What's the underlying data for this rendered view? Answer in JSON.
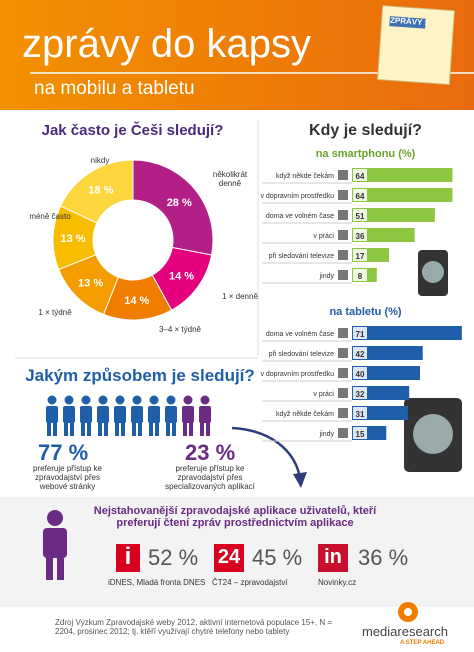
{
  "header": {
    "title": "zprávy do kapsy",
    "subtitle": "na mobilu a tabletu",
    "badge": "ZPRÁVY !"
  },
  "chart_data": [
    {
      "type": "pie",
      "title": "Jak často je Češi sledují?",
      "categories": [
        "několikrát denně",
        "1 × denně",
        "3–4 × týdně",
        "1 × týdně",
        "méně často",
        "nikdy"
      ],
      "values": [
        28,
        14,
        14,
        13,
        13,
        18
      ],
      "value_labels": [
        "28 %",
        "14 %",
        "14 %",
        "13 %",
        "13 %",
        "18 %"
      ],
      "colors": [
        "#b21f86",
        "#e5007d",
        "#f07d00",
        "#f59c00",
        "#f9bd00",
        "#fcd63c"
      ]
    },
    {
      "type": "bar",
      "title": "Kdy je sledují?",
      "subtitle": "na smartphonu (%)",
      "color": "#8dc63f",
      "categories": [
        "když někde čekám",
        "v dopravním prostředku",
        "doma ve volném čase",
        "v práci",
        "při sledování televize",
        "jindy"
      ],
      "values": [
        64,
        64,
        51,
        36,
        17,
        8
      ]
    },
    {
      "type": "bar",
      "subtitle": "na tabletu (%)",
      "color": "#1f5ea8",
      "categories": [
        "doma ve volném čase",
        "při sledování televize",
        "v dopravním prostředku",
        "v práci",
        "když někde čekám",
        "jindy"
      ],
      "values": [
        71,
        42,
        40,
        32,
        31,
        15
      ]
    }
  ],
  "how": {
    "title": "Jakým způsobem je sledují?",
    "web": {
      "share": "77 %",
      "text": "preferuje přístup ke zpravodajství přes webové stránky"
    },
    "apps": {
      "share": "23 %",
      "text": "preferuje přístup ke zpravodajství přes specializovaných aplikací"
    }
  },
  "top_apps": {
    "title": "Nejstahovanější zpravodajské aplikace uživatelů, kteří preferují čtení zpráv prostřednictvím aplikace",
    "items": [
      {
        "icon": "i",
        "share": "52 %",
        "name": "iDNES, Mladá fronta DNES"
      },
      {
        "icon": "24",
        "share": "45 %",
        "name": "ČT24 – zpravodajství"
      },
      {
        "icon": "in",
        "share": "36 %",
        "name": "Novinky.cz"
      }
    ]
  },
  "footer": {
    "source": "Zdroj Výzkum Zpravodajské weby 2012, aktivní internetová populace 15+, N = 2204, prosinec 2012; tj. ktěří využívají chytré telefony nebo tablety",
    "logo": "mediaresearch",
    "tagline": "A STEP AHEAD"
  }
}
